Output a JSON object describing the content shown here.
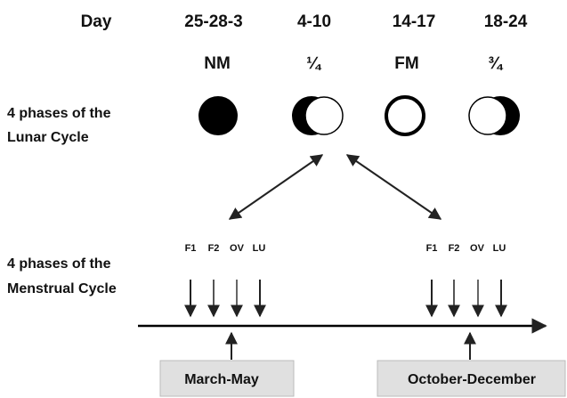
{
  "day_label": "Day",
  "columns": [
    {
      "days": "25-28-3",
      "phase": "NM"
    },
    {
      "days": "4-10",
      "phase": "¼"
    },
    {
      "days": "14-17",
      "phase": "FM"
    },
    {
      "days": "18-24",
      "phase": "¾"
    }
  ],
  "lunar_label": [
    "4 phases of the",
    "Lunar Cycle"
  ],
  "menstrual_label": [
    "4 phases of the",
    "Menstrual Cycle"
  ],
  "menstrual_phases": [
    "F1",
    "F2",
    "OV",
    "LU"
  ],
  "seasons": [
    "March-May",
    "October-December"
  ]
}
